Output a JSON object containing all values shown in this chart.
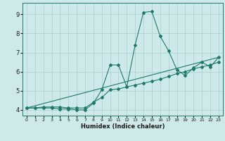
{
  "xlabel": "Humidex (Indice chaleur)",
  "xlim": [
    -0.5,
    23.5
  ],
  "ylim": [
    3.7,
    9.6
  ],
  "xticks": [
    0,
    1,
    2,
    3,
    4,
    5,
    6,
    7,
    8,
    9,
    10,
    11,
    12,
    13,
    14,
    15,
    16,
    17,
    18,
    19,
    20,
    21,
    22,
    23
  ],
  "yticks": [
    4,
    5,
    6,
    7,
    8,
    9
  ],
  "line_color": "#1e7a67",
  "bg_color": "#ceeae8",
  "grid_color": "#aacfcc",
  "line1_x": [
    0,
    1,
    2,
    3,
    4,
    5,
    6,
    7,
    8,
    9,
    10,
    11,
    12,
    13,
    14,
    15,
    16,
    17,
    18,
    19,
    20,
    21,
    22,
    23
  ],
  "line1_y": [
    4.1,
    4.1,
    4.1,
    4.1,
    4.05,
    4.05,
    4.0,
    4.0,
    4.35,
    5.05,
    6.35,
    6.35,
    5.2,
    7.4,
    9.1,
    9.15,
    7.85,
    7.1,
    6.1,
    5.8,
    6.2,
    6.5,
    6.25,
    6.75
  ],
  "line2_x": [
    0,
    1,
    2,
    3,
    4,
    5,
    6,
    7,
    8,
    9,
    10,
    11,
    12,
    13,
    14,
    15,
    16,
    17,
    18,
    19,
    20,
    21,
    22,
    23
  ],
  "line2_y": [
    4.1,
    4.1,
    4.15,
    4.15,
    4.15,
    4.1,
    4.1,
    4.1,
    4.4,
    4.65,
    5.05,
    5.1,
    5.2,
    5.3,
    5.4,
    5.5,
    5.6,
    5.75,
    5.9,
    6.0,
    6.15,
    6.25,
    6.35,
    6.5
  ],
  "line3_x": [
    0,
    23
  ],
  "line3_y": [
    4.1,
    6.75
  ],
  "marker_size": 2.0
}
